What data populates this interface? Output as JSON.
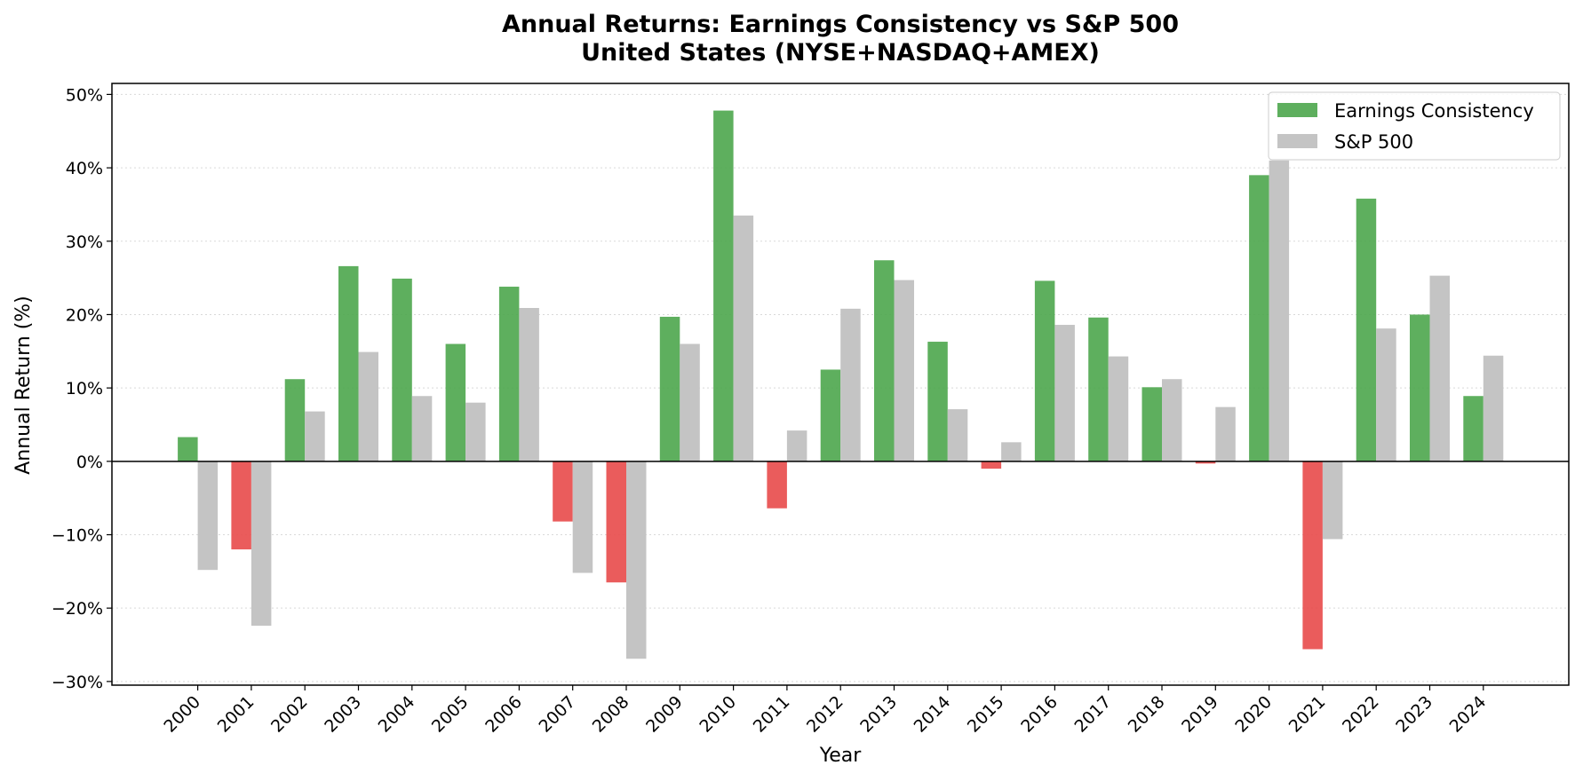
{
  "chart_data": {
    "type": "bar",
    "title": "Annual Returns: Earnings Consistency vs S&P 500",
    "subtitle": "United States (NYSE+NASDAQ+AMEX)",
    "xlabel": "Year",
    "ylabel": "Annual Return (%)",
    "ylim": [
      -30.5,
      51.5
    ],
    "yticks": [
      -30,
      -20,
      -10,
      0,
      10,
      20,
      30,
      40,
      50
    ],
    "grid": true,
    "legend_position": "top-right",
    "categories": [
      "2000",
      "2001",
      "2002",
      "2003",
      "2004",
      "2005",
      "2006",
      "2007",
      "2008",
      "2009",
      "2010",
      "2011",
      "2012",
      "2013",
      "2014",
      "2015",
      "2016",
      "2017",
      "2018",
      "2019",
      "2020",
      "2021",
      "2022",
      "2023",
      "2024"
    ],
    "series": [
      {
        "name": "Earnings Consistency",
        "color": "#4ca64c",
        "negative_color": "#e84a4a",
        "values": [
          3.3,
          -12.0,
          11.2,
          26.6,
          24.9,
          16.0,
          23.8,
          -8.2,
          -16.5,
          19.7,
          47.8,
          -6.4,
          12.5,
          27.4,
          16.3,
          -1.0,
          24.6,
          19.6,
          10.1,
          -0.3,
          39.0,
          -25.6,
          35.8,
          20.0,
          8.9
        ]
      },
      {
        "name": "S&P 500",
        "color": "#c4c4c4",
        "values": [
          -14.8,
          -22.4,
          6.8,
          14.9,
          8.9,
          8.0,
          20.9,
          -15.2,
          -26.9,
          16.0,
          33.5,
          4.2,
          20.8,
          24.7,
          7.1,
          2.6,
          18.6,
          14.3,
          11.2,
          7.4,
          41.0,
          -10.6,
          18.1,
          25.3,
          14.4
        ]
      }
    ]
  }
}
